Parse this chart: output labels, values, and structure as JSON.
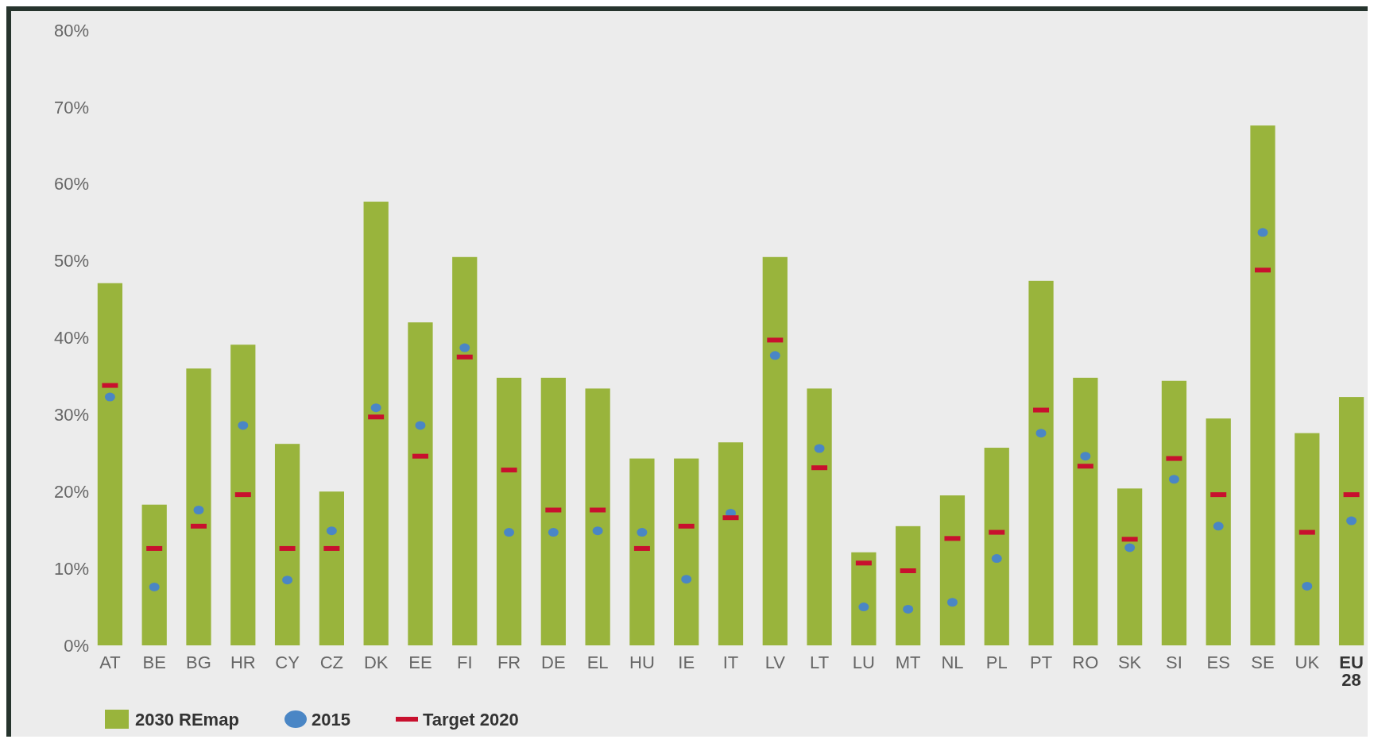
{
  "chart_data": {
    "type": "bar",
    "categories": [
      "AT",
      "BE",
      "BG",
      "HR",
      "CY",
      "CZ",
      "DK",
      "EE",
      "FI",
      "FR",
      "DE",
      "EL",
      "HU",
      "IE",
      "IT",
      "LV",
      "LT",
      "LU",
      "MT",
      "NL",
      "PL",
      "PT",
      "RO",
      "SK",
      "SI",
      "ES",
      "SE",
      "UK",
      "EU 28"
    ],
    "series": [
      {
        "name": "2030 REmap",
        "color": "#99b43c",
        "values": [
          47.1,
          18.3,
          36.0,
          39.1,
          26.2,
          20.0,
          57.7,
          42.0,
          50.5,
          34.8,
          34.8,
          33.4,
          24.3,
          24.3,
          26.4,
          50.5,
          33.4,
          12.1,
          15.5,
          19.5,
          25.7,
          47.4,
          34.8,
          20.4,
          34.4,
          29.5,
          67.6,
          27.6,
          32.3
        ]
      },
      {
        "name": "2015",
        "type": "scatter",
        "marker": "circle",
        "color": "#4a86c5",
        "values": [
          32.3,
          7.6,
          17.6,
          28.6,
          8.5,
          14.9,
          30.9,
          28.6,
          38.7,
          14.7,
          14.7,
          14.9,
          14.7,
          8.6,
          17.2,
          37.7,
          25.6,
          5.0,
          4.7,
          5.6,
          11.3,
          27.6,
          24.6,
          12.7,
          21.6,
          15.5,
          53.7,
          7.7,
          16.2
        ]
      },
      {
        "name": "Target 2020",
        "type": "scatter",
        "marker": "square",
        "color": "#c8102e",
        "values": [
          33.8,
          12.6,
          15.5,
          19.6,
          12.6,
          12.6,
          29.7,
          24.6,
          37.5,
          22.8,
          17.6,
          17.6,
          12.6,
          15.5,
          16.6,
          39.7,
          23.1,
          10.7,
          9.7,
          13.9,
          14.7,
          30.6,
          23.3,
          13.8,
          24.3,
          19.6,
          48.8,
          14.7,
          19.6
        ]
      }
    ],
    "ylim": [
      0,
      80
    ],
    "yticks": [
      {
        "value": 0,
        "label": "0%"
      },
      {
        "value": 10,
        "label": "10%"
      },
      {
        "value": 20,
        "label": "20%"
      },
      {
        "value": 30,
        "label": "30%"
      },
      {
        "value": 40,
        "label": "40%"
      },
      {
        "value": 50,
        "label": "50%"
      },
      {
        "value": 60,
        "label": "60%"
      },
      {
        "value": 70,
        "label": "70%"
      },
      {
        "value": 80,
        "label": "80%"
      }
    ],
    "grid": false,
    "legend": "bottom left"
  }
}
